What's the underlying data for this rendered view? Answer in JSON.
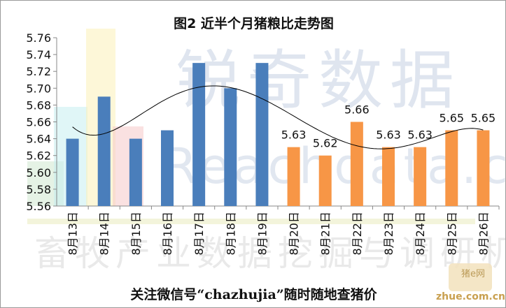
{
  "chart_data": {
    "type": "bar",
    "title": "图2 近半个月猪粮比走势图",
    "categories": [
      "8月13日",
      "8月14日",
      "8月15日",
      "8月16日",
      "8月17日",
      "8月18日",
      "8月19日",
      "8月20日",
      "8月21日",
      "8月22日",
      "8月23日",
      "8月24日",
      "8月25日",
      "8月26日"
    ],
    "values": [
      5.64,
      5.69,
      5.64,
      5.65,
      5.73,
      5.7,
      5.73,
      5.63,
      5.62,
      5.66,
      5.63,
      5.63,
      5.65,
      5.65
    ],
    "data_labels": [
      null,
      null,
      null,
      null,
      null,
      null,
      null,
      "5.63",
      "5.62",
      "5.66",
      "5.63",
      "5.63",
      "5.65",
      "5.65"
    ],
    "ylim": [
      5.56,
      5.76
    ],
    "yticks": [
      "5.56",
      "5.58",
      "5.60",
      "5.62",
      "5.64",
      "5.66",
      "5.68",
      "5.70",
      "5.72",
      "5.74",
      "5.76"
    ],
    "grid": false,
    "legend": "none",
    "trendline": "polynomial",
    "colors": {
      "early_bars": "#4a7ebb",
      "recent_bars": "#f79646",
      "trend": "#000000",
      "axis": "#888888"
    }
  },
  "footer_text": "关注微信号“chazhujia”随时随地查猪价",
  "watermark": {
    "top": "锐奇数据",
    "mid": "Reachdata.cn",
    "bottom": "畜牧产业数据挖掘与调研机构"
  },
  "site_logo": {
    "badge": "猪e网",
    "url": "zhue.com.cn"
  }
}
